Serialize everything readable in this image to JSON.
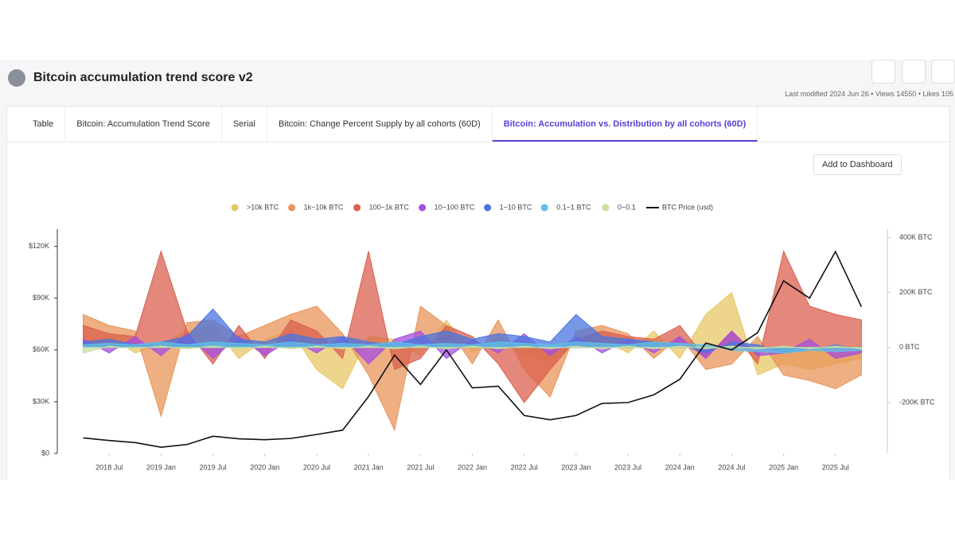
{
  "header": {
    "title": "Bitcoin accumulation trend score v2",
    "meta": "Last modified 2024 Jun 26 • Views 14550 • Likes 105"
  },
  "tabs": [
    "Table",
    "Bitcoin: Accumulation Trend Score",
    "Serial",
    "Bitcoin: Change Percent Supply by all cohorts (60D)",
    "Bitcoin: Accumulation vs. Distribution by all cohorts (60D)"
  ],
  "button": "Add to Dashboard",
  "chart_data": {
    "type": "area-line",
    "x": [
      "2018-04",
      "2018-07",
      "2018-10",
      "2019-01",
      "2019-04",
      "2019-07",
      "2019-10",
      "2020-01",
      "2020-04",
      "2020-07",
      "2020-10",
      "2021-01",
      "2021-04",
      "2021-07",
      "2021-10",
      "2022-01",
      "2022-04",
      "2022-07",
      "2022-10",
      "2023-01",
      "2023-04",
      "2023-07",
      "2023-10",
      "2024-01",
      "2024-04",
      "2024-07",
      "2024-10",
      "2025-01",
      "2025-04",
      "2025-07",
      "2025-10"
    ],
    "xlim": [
      "2018-01",
      "2026-01"
    ],
    "xticks": [
      {
        "value": "2018-07",
        "label": "2018 Jul"
      },
      {
        "value": "2019-01",
        "label": "2019 Jan"
      },
      {
        "value": "2019-07",
        "label": "2019 Jul"
      },
      {
        "value": "2020-01",
        "label": "2020 Jan"
      },
      {
        "value": "2020-07",
        "label": "2020 Jul"
      },
      {
        "value": "2021-01",
        "label": "2021 Jan"
      },
      {
        "value": "2021-07",
        "label": "2021 Jul"
      },
      {
        "value": "2022-01",
        "label": "2022 Jan"
      },
      {
        "value": "2022-07",
        "label": "2022 Jul"
      },
      {
        "value": "2023-01",
        "label": "2023 Jan"
      },
      {
        "value": "2023-07",
        "label": "2023 Jul"
      },
      {
        "value": "2024-01",
        "label": "2024 Jan"
      },
      {
        "value": "2024-07",
        "label": "2024 Jul"
      },
      {
        "value": "2025-01",
        "label": "2025 Jan"
      },
      {
        "value": "2025-07",
        "label": "2025 Jul"
      }
    ],
    "ylim": [
      0,
      130000
    ],
    "yticks": [
      {
        "value": 0,
        "label": "$0"
      },
      {
        "value": 30000,
        "label": "$30K"
      },
      {
        "value": 60000,
        "label": "$60K"
      },
      {
        "value": 90000,
        "label": "$90K"
      },
      {
        "value": 120000,
        "label": "$120K"
      }
    ],
    "y2lim": [
      -385000,
      430000
    ],
    "y2ticks": [
      {
        "value": -200000,
        "label": "-200K BTC"
      },
      {
        "value": 0,
        "label": "0 BTC"
      },
      {
        "value": 200000,
        "label": "200K BTC"
      },
      {
        "value": 400000,
        "label": "400K BTC"
      }
    ],
    "series": [
      {
        "name": ">10k BTC",
        "color": "#e8c766",
        "axis": "y2",
        "values": [
          20000,
          40000,
          -20000,
          10000,
          60000,
          80000,
          -40000,
          30000,
          60000,
          -80000,
          -150000,
          40000,
          30000,
          -30000,
          100000,
          -20000,
          40000,
          -30000,
          -50000,
          20000,
          30000,
          -20000,
          60000,
          -40000,
          120000,
          200000,
          -100000,
          -60000,
          -80000,
          -60000,
          -40000
        ]
      },
      {
        "name": "1k~10k BTC",
        "color": "#e8945a",
        "axis": "y2",
        "values": [
          120000,
          80000,
          60000,
          -250000,
          90000,
          100000,
          40000,
          80000,
          120000,
          150000,
          50000,
          -100000,
          -300000,
          150000,
          80000,
          -60000,
          100000,
          -80000,
          -180000,
          60000,
          80000,
          50000,
          -40000,
          40000,
          -80000,
          -60000,
          40000,
          -100000,
          -120000,
          -150000,
          -100000
        ]
      },
      {
        "name": "100~1k BTC",
        "color": "#d9604e",
        "axis": "y2",
        "values": [
          80000,
          50000,
          40000,
          350000,
          60000,
          -60000,
          80000,
          -40000,
          100000,
          60000,
          -40000,
          350000,
          -80000,
          -40000,
          80000,
          40000,
          -60000,
          -200000,
          -80000,
          30000,
          60000,
          40000,
          30000,
          80000,
          -40000,
          60000,
          -60000,
          350000,
          150000,
          120000,
          100000
        ]
      },
      {
        "name": "10~100 BTC",
        "color": "#a54ee0",
        "axis": "y2",
        "values": [
          30000,
          -20000,
          40000,
          -30000,
          50000,
          -40000,
          40000,
          -30000,
          30000,
          -20000,
          40000,
          -60000,
          30000,
          60000,
          -40000,
          30000,
          -20000,
          50000,
          -30000,
          40000,
          -20000,
          30000,
          -20000,
          40000,
          -40000,
          60000,
          -30000,
          -20000,
          30000,
          -40000,
          -20000
        ]
      },
      {
        "name": "1~10 BTC",
        "color": "#4a74e0",
        "axis": "y2",
        "values": [
          20000,
          30000,
          10000,
          20000,
          40000,
          140000,
          30000,
          20000,
          50000,
          30000,
          40000,
          20000,
          10000,
          40000,
          60000,
          30000,
          50000,
          40000,
          20000,
          120000,
          40000,
          30000,
          20000,
          10000,
          -20000,
          20000,
          10000,
          -20000,
          -10000,
          10000,
          -10000
        ]
      },
      {
        "name": "0.1~1 BTC",
        "color": "#5ec0e6",
        "axis": "y2",
        "values": [
          10000,
          15000,
          10000,
          20000,
          10000,
          20000,
          15000,
          10000,
          20000,
          10000,
          15000,
          10000,
          20000,
          10000,
          15000,
          10000,
          20000,
          15000,
          10000,
          20000,
          15000,
          10000,
          20000,
          15000,
          10000,
          -10000,
          -15000,
          -20000,
          -10000,
          -15000,
          -10000
        ]
      },
      {
        "name": "0~0.1",
        "color": "#c6e0a0",
        "axis": "y2",
        "values": [
          -20000,
          5000,
          -5000,
          5000,
          -5000,
          5000,
          -5000,
          5000,
          -5000,
          5000,
          -5000,
          5000,
          -5000,
          5000,
          -5000,
          5000,
          -5000,
          5000,
          -5000,
          5000,
          -5000,
          5000,
          -5000,
          5000,
          -5000,
          5000,
          -5000,
          5000,
          -5000,
          5000,
          -5000
        ]
      },
      {
        "name": "BTC Price (usd)",
        "color": "#111111",
        "axis": "y",
        "values": [
          9000,
          7500,
          6300,
          3600,
          5200,
          10000,
          8500,
          8000,
          8700,
          11000,
          13500,
          33000,
          57000,
          40000,
          60000,
          38000,
          39000,
          22000,
          19500,
          22000,
          29000,
          29500,
          34000,
          43000,
          64000,
          60000,
          70000,
          100000,
          90000,
          117000,
          85000
        ]
      }
    ]
  }
}
